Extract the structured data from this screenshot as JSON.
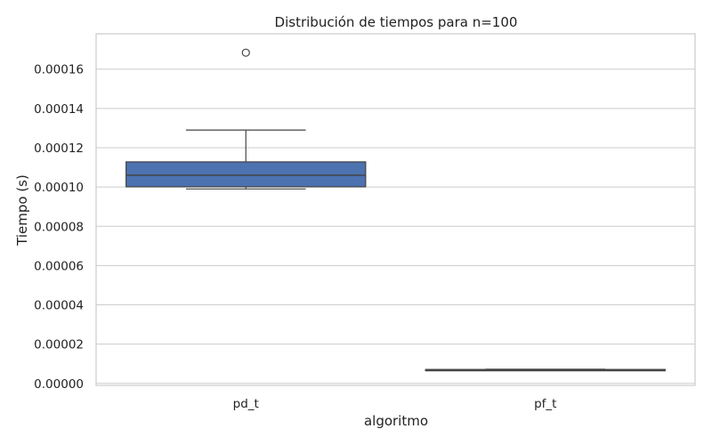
{
  "chart_data": {
    "type": "box",
    "title": "Distribución de tiempos para n=100",
    "xlabel": "algoritmo",
    "ylabel": "Tiempo (s)",
    "categories": [
      "pd_t",
      "pf_t"
    ],
    "ylim": [
      -1e-06,
      0.000178
    ],
    "yticks": [
      0.0,
      2e-05,
      4e-05,
      6e-05,
      8e-05,
      0.0001,
      0.00012,
      0.00014,
      0.00016
    ],
    "ytick_labels": [
      "0.00000",
      "0.00002",
      "0.00004",
      "0.00006",
      "0.00008",
      "0.00010",
      "0.00012",
      "0.00014",
      "0.00016"
    ],
    "grid": true,
    "box_color": "#4c72b0",
    "boxes": [
      {
        "category": "pd_t",
        "whisker_low": 9.9e-05,
        "q1": 0.0001001,
        "median": 0.000106,
        "q3": 0.0001128,
        "whisker_high": 0.000129,
        "outliers": [
          0.0001684
        ]
      },
      {
        "category": "pf_t",
        "whisker_low": 6.8e-06,
        "q1": 6.9e-06,
        "median": 7e-06,
        "q3": 7.1e-06,
        "whisker_high": 7.2e-06,
        "outliers": []
      }
    ]
  }
}
